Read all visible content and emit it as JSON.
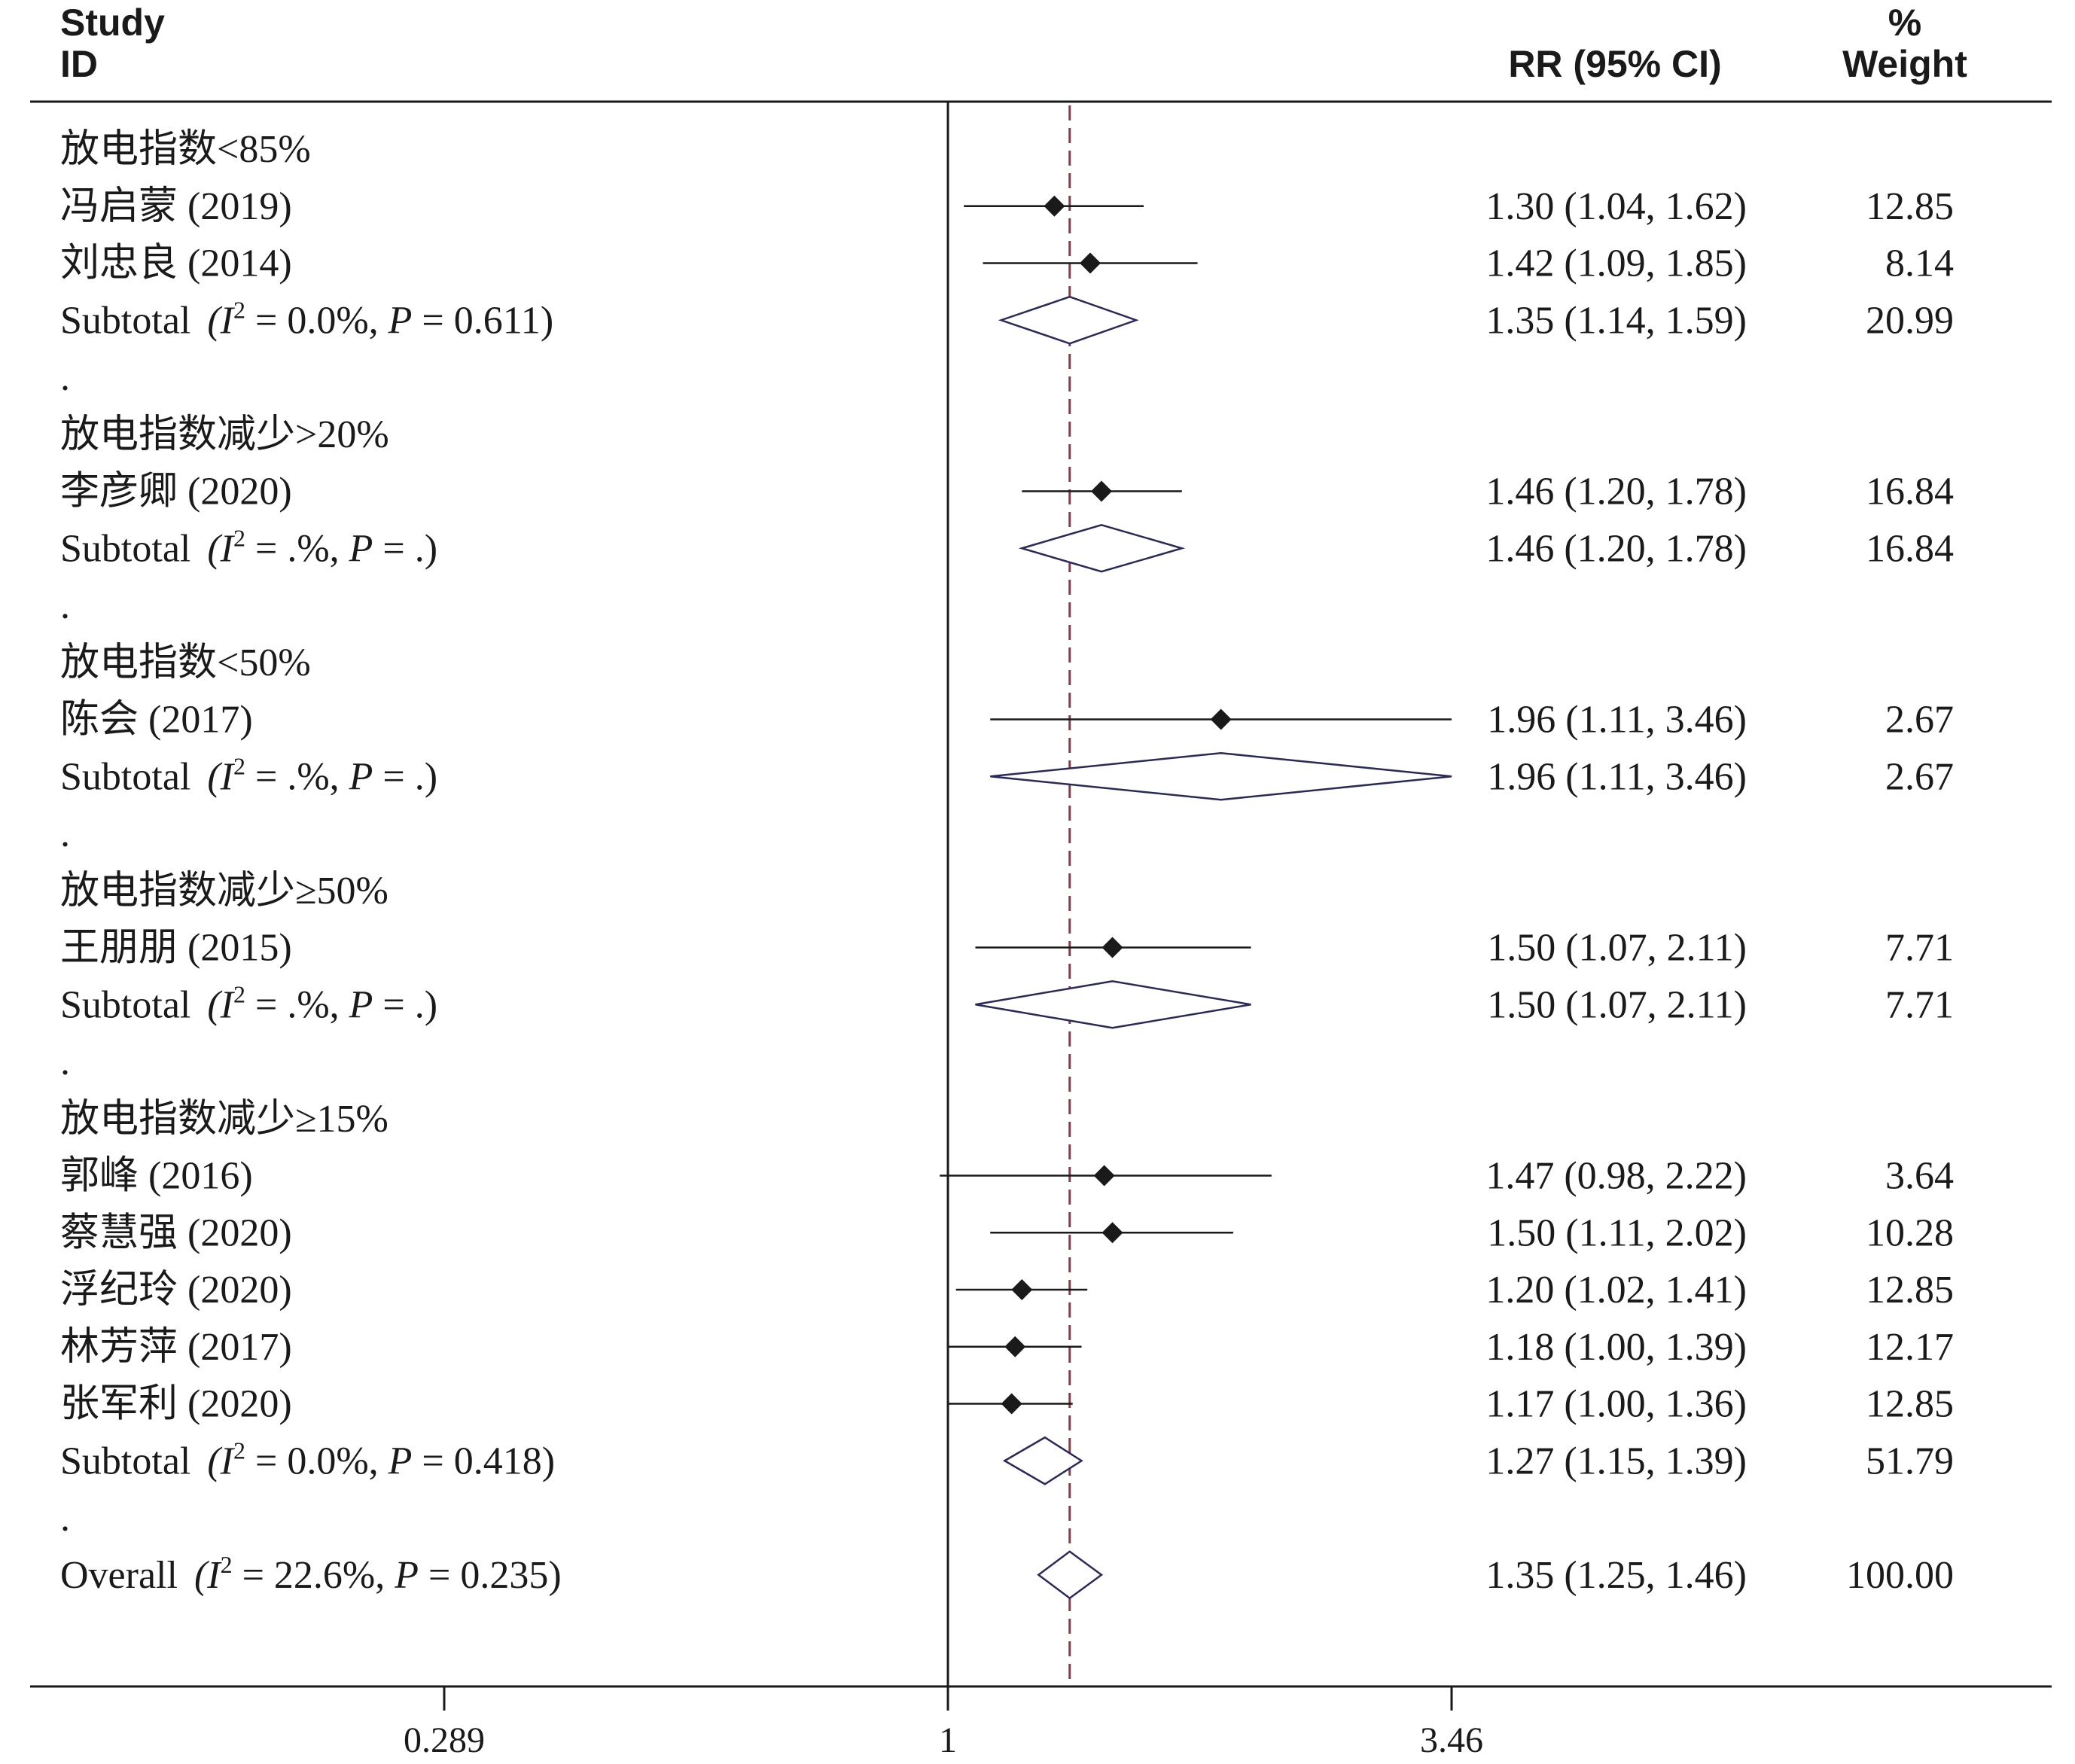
{
  "chart_data": {
    "type": "forest",
    "columns": {
      "study_line1": "Study",
      "study_line2": "ID",
      "effect": "RR (95% CI)",
      "weight_line1": "%",
      "weight_line2": "Weight"
    },
    "x_scale": "log",
    "xlim": [
      0.289,
      3.46
    ],
    "ticks": [
      {
        "value": 0.289,
        "label": "0.289"
      },
      {
        "value": 1,
        "label": "1"
      },
      {
        "value": 3.46,
        "label": "3.46"
      }
    ],
    "null_line": 1,
    "overall_line": 1.35,
    "rows": [
      {
        "type": "group",
        "label": "放电指数<85%"
      },
      {
        "type": "study",
        "label": "冯启蒙 (2019)",
        "est": 1.3,
        "lo": 1.04,
        "hi": 1.62,
        "ci_text": "1.30 (1.04, 1.62)",
        "weight": "12.85"
      },
      {
        "type": "study",
        "label": "刘忠良 (2014)",
        "est": 1.42,
        "lo": 1.09,
        "hi": 1.85,
        "ci_text": "1.42 (1.09, 1.85)",
        "weight": "8.14"
      },
      {
        "type": "subtotal",
        "label": "Subtotal",
        "I2": "0.0%",
        "P": "0.611",
        "est": 1.35,
        "lo": 1.14,
        "hi": 1.59,
        "ci_text": "1.35 (1.14, 1.59)",
        "weight": "20.99"
      },
      {
        "type": "sep",
        "label": "."
      },
      {
        "type": "group",
        "label": "放电指数减少>20%"
      },
      {
        "type": "study",
        "label": "李彦卿 (2020)",
        "est": 1.46,
        "lo": 1.2,
        "hi": 1.78,
        "ci_text": "1.46 (1.20, 1.78)",
        "weight": "16.84"
      },
      {
        "type": "subtotal",
        "label": "Subtotal",
        "I2": ".%",
        "P": ".",
        "est": 1.46,
        "lo": 1.2,
        "hi": 1.78,
        "ci_text": "1.46 (1.20, 1.78)",
        "weight": "16.84"
      },
      {
        "type": "sep",
        "label": "."
      },
      {
        "type": "group",
        "label": "放电指数<50%"
      },
      {
        "type": "study",
        "label": "陈会 (2017)",
        "est": 1.96,
        "lo": 1.11,
        "hi": 3.46,
        "ci_text": "1.96 (1.11, 3.46)",
        "weight": "2.67"
      },
      {
        "type": "subtotal",
        "label": "Subtotal",
        "I2": ".%",
        "P": ".",
        "est": 1.96,
        "lo": 1.11,
        "hi": 3.46,
        "ci_text": "1.96 (1.11, 3.46)",
        "weight": "2.67"
      },
      {
        "type": "sep",
        "label": "."
      },
      {
        "type": "group",
        "label": "放电指数减少≥50%"
      },
      {
        "type": "study",
        "label": "王朋朋 (2015)",
        "est": 1.5,
        "lo": 1.07,
        "hi": 2.11,
        "ci_text": "1.50 (1.07, 2.11)",
        "weight": "7.71"
      },
      {
        "type": "subtotal",
        "label": "Subtotal",
        "I2": ".%",
        "P": ".",
        "est": 1.5,
        "lo": 1.07,
        "hi": 2.11,
        "ci_text": "1.50 (1.07, 2.11)",
        "weight": "7.71"
      },
      {
        "type": "sep",
        "label": "."
      },
      {
        "type": "group",
        "label": "放电指数减少≥15%"
      },
      {
        "type": "study",
        "label": "郭峰 (2016)",
        "est": 1.47,
        "lo": 0.98,
        "hi": 2.22,
        "ci_text": "1.47 (0.98, 2.22)",
        "weight": "3.64"
      },
      {
        "type": "study",
        "label": "蔡慧强 (2020)",
        "est": 1.5,
        "lo": 1.11,
        "hi": 2.02,
        "ci_text": "1.50 (1.11, 2.02)",
        "weight": "10.28"
      },
      {
        "type": "study",
        "label": "浮纪玲 (2020)",
        "est": 1.2,
        "lo": 1.02,
        "hi": 1.41,
        "ci_text": "1.20 (1.02, 1.41)",
        "weight": "12.85"
      },
      {
        "type": "study",
        "label": "林芳萍 (2017)",
        "est": 1.18,
        "lo": 1.0,
        "hi": 1.39,
        "ci_text": "1.18 (1.00, 1.39)",
        "weight": "12.17"
      },
      {
        "type": "study",
        "label": "张军利 (2020)",
        "est": 1.17,
        "lo": 1.0,
        "hi": 1.36,
        "ci_text": "1.17 (1.00, 1.36)",
        "weight": "12.85"
      },
      {
        "type": "subtotal",
        "label": "Subtotal",
        "I2": "0.0%",
        "P": "0.418",
        "est": 1.27,
        "lo": 1.15,
        "hi": 1.39,
        "ci_text": "1.27 (1.15, 1.39)",
        "weight": "51.79"
      },
      {
        "type": "sep",
        "label": "."
      },
      {
        "type": "overall",
        "label": "Overall",
        "I2": "22.6%",
        "P": "0.235",
        "est": 1.35,
        "lo": 1.25,
        "hi": 1.46,
        "ci_text": "1.35 (1.25, 1.46)",
        "weight": "100.00"
      }
    ],
    "colors": {
      "text": "#1a1a1a",
      "axis": "#1a1a1a",
      "point": "#1a1a1a",
      "diamond": "#2a2a5a",
      "overall_line": "#8b3a4a"
    }
  }
}
